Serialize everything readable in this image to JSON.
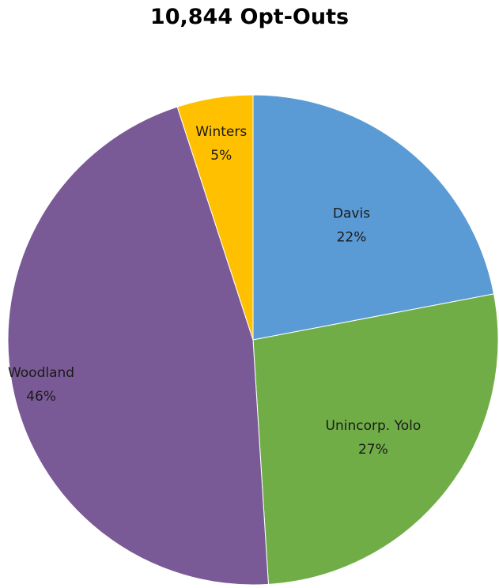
{
  "chart_data": {
    "type": "pie",
    "title": "10,844 Opt-Outs",
    "slices": [
      {
        "label": "Davis",
        "value": 22,
        "value_label": "22%",
        "color": "#5b9bd5"
      },
      {
        "label": "Unincorp. Yolo",
        "value": 27,
        "value_label": "27%",
        "color": "#70ad47"
      },
      {
        "label": "Woodland",
        "value": 46,
        "value_label": "46%",
        "color": "#7a5a96"
      },
      {
        "label": "Winters",
        "value": 5,
        "value_label": "5%",
        "color": "#ffc000"
      }
    ],
    "start_angle_deg": 0,
    "direction": "clockwise",
    "legend": "none",
    "labels": "inside"
  }
}
